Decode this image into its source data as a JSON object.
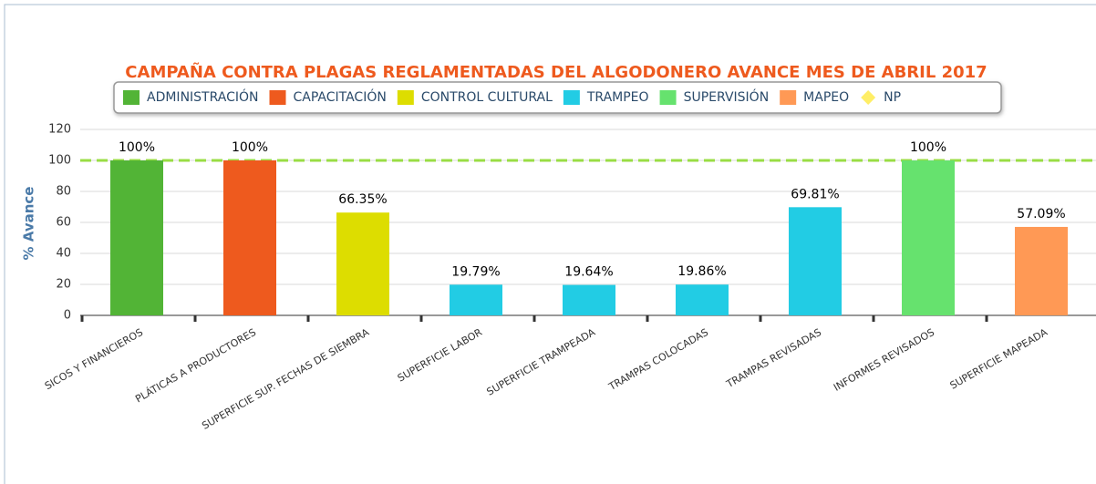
{
  "chart_data": {
    "type": "bar",
    "title": "CAMPAÑA CONTRA PLAGAS REGLAMENTADAS DEL ALGODONERO AVANCE MES DE ABRIL 2017",
    "y_label": "% Avance",
    "categories": [
      "SICOS Y FINANCIEROS",
      "PLÁTICAS A PRODUCTORES",
      "SUPERFICIE SUP. FECHAS DE SIEMBRA",
      "SUPERFICIE LABOR",
      "SUPERFICIE TRAMPEADA",
      "TRAMPAS COLOCADAS",
      "TRAMPAS REVISADAS",
      "INFORMES REVISADOS",
      "SUPERFICIE MAPEADA"
    ],
    "series": [
      {
        "name": "ADMINISTRACIÓN",
        "color": "#52b436",
        "values": [
          100,
          null,
          null,
          null,
          null,
          null,
          null,
          null,
          null
        ],
        "value_labels": [
          "100%",
          null,
          null,
          null,
          null,
          null,
          null,
          null,
          null
        ]
      },
      {
        "name": "CAPACITACIÓN",
        "color": "#ee5a1e",
        "values": [
          null,
          100,
          null,
          null,
          null,
          null,
          null,
          null,
          null
        ],
        "value_labels": [
          null,
          "100%",
          null,
          null,
          null,
          null,
          null,
          null,
          null
        ]
      },
      {
        "name": "CONTROL CULTURAL",
        "color": "#dddd00",
        "values": [
          null,
          null,
          66.35,
          null,
          null,
          null,
          null,
          null,
          null
        ],
        "value_labels": [
          null,
          null,
          "66.35%",
          null,
          null,
          null,
          null,
          null,
          null
        ]
      },
      {
        "name": "TRAMPEO",
        "color": "#22cce4",
        "values": [
          null,
          null,
          null,
          19.79,
          19.64,
          19.86,
          69.81,
          null,
          null
        ],
        "value_labels": [
          null,
          null,
          null,
          "19.79%",
          "19.64%",
          "19.86%",
          "69.81%",
          null,
          null
        ]
      },
      {
        "name": "SUPERVISIÓN",
        "color": "#66e26e",
        "values": [
          null,
          null,
          null,
          null,
          null,
          null,
          null,
          100,
          null
        ],
        "value_labels": [
          null,
          null,
          null,
          null,
          null,
          null,
          null,
          "100%",
          null
        ]
      },
      {
        "name": "MAPEO",
        "color": "#ff9955",
        "values": [
          null,
          null,
          null,
          null,
          null,
          null,
          null,
          null,
          57.09
        ],
        "value_labels": [
          null,
          null,
          null,
          null,
          null,
          null,
          null,
          null,
          "57.09%"
        ]
      }
    ],
    "plot_line": {
      "name": "NP",
      "value": 100,
      "color": "#99dd44",
      "marker_color": "#ffee66"
    },
    "ylim": [
      0,
      120
    ],
    "yticks": [
      0,
      20,
      40,
      60,
      80,
      100,
      120
    ],
    "grid": true
  }
}
